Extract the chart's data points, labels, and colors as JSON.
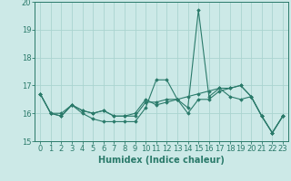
{
  "x": [
    0,
    1,
    2,
    3,
    4,
    5,
    6,
    7,
    8,
    9,
    10,
    11,
    12,
    13,
    14,
    15,
    16,
    17,
    18,
    19,
    20,
    21,
    22,
    23
  ],
  "line1": [
    16.7,
    16.0,
    15.9,
    16.3,
    16.0,
    15.8,
    15.7,
    15.7,
    15.7,
    15.7,
    16.2,
    17.2,
    17.2,
    16.5,
    16.2,
    19.7,
    16.6,
    16.9,
    16.6,
    16.5,
    16.6,
    15.9,
    15.3,
    15.9
  ],
  "line2": [
    16.7,
    16.0,
    15.9,
    16.3,
    16.1,
    16.0,
    16.1,
    15.9,
    15.9,
    15.9,
    16.4,
    16.4,
    16.5,
    16.5,
    16.6,
    16.7,
    16.8,
    16.9,
    16.9,
    17.0,
    16.6,
    15.9,
    15.3,
    15.9
  ],
  "line3": [
    16.7,
    16.0,
    16.0,
    16.3,
    16.1,
    16.0,
    16.1,
    15.9,
    15.9,
    16.0,
    16.5,
    16.3,
    16.4,
    16.5,
    16.0,
    16.5,
    16.5,
    16.8,
    16.9,
    17.0,
    16.6,
    15.9,
    15.3,
    15.9
  ],
  "background_color": "#cce9e7",
  "grid_color": "#aad4d0",
  "line_color": "#2a7a6a",
  "xlabel": "Humidex (Indice chaleur)",
  "ylim": [
    15,
    20
  ],
  "xlim": [
    -0.5,
    23.5
  ],
  "yticks": [
    15,
    16,
    17,
    18,
    19,
    20
  ],
  "xticks": [
    0,
    1,
    2,
    3,
    4,
    5,
    6,
    7,
    8,
    9,
    10,
    11,
    12,
    13,
    14,
    15,
    16,
    17,
    18,
    19,
    20,
    21,
    22,
    23
  ],
  "xlabel_fontsize": 7,
  "tick_fontsize": 6,
  "marker": "D",
  "markersize": 1.8,
  "linewidth": 0.8
}
